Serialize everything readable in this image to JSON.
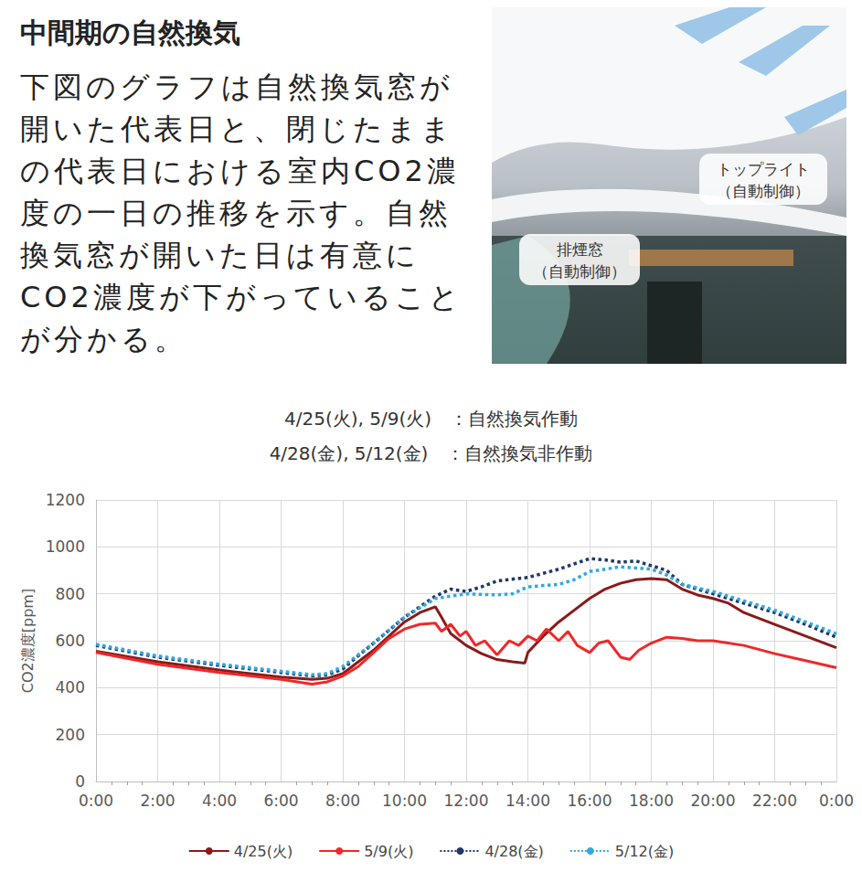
{
  "heading": "中間期の自然換気",
  "body_lines": [
    "下図のグラフは自然換気窓が",
    "開いた代表日と、閉じたまま",
    "の代表日における室内CO2濃",
    "度の一日の推移を示す。自然",
    "換気窓が開いた日は有意に",
    "CO2濃度が下がっていること",
    "が分かる。"
  ],
  "photo": {
    "labels": [
      [
        "トップライト",
        "（自動制御）"
      ],
      [
        "排煙窓",
        "（自動制御）"
      ]
    ]
  },
  "chart_data": {
    "type": "line",
    "annotations": [
      "4/25(火), 5/9(火)　：自然換気作動",
      "4/28(金), 5/12(金)　：自然換気非作動"
    ],
    "y_label": "CO2濃度[ppm]",
    "xlim": [
      0,
      24
    ],
    "xticks": [
      {
        "value": 0,
        "label": "0:00"
      },
      {
        "value": 2,
        "label": "2:00"
      },
      {
        "value": 4,
        "label": "4:00"
      },
      {
        "value": 6,
        "label": "6:00"
      },
      {
        "value": 8,
        "label": "8:00"
      },
      {
        "value": 10,
        "label": "10:00"
      },
      {
        "value": 12,
        "label": "12:00"
      },
      {
        "value": 14,
        "label": "14:00"
      },
      {
        "value": 16,
        "label": "16:00"
      },
      {
        "value": 18,
        "label": "18:00"
      },
      {
        "value": 20,
        "label": "20:00"
      },
      {
        "value": 22,
        "label": "22:00"
      },
      {
        "value": 24,
        "label": "0:00"
      }
    ],
    "ylim": [
      0,
      1200
    ],
    "yticks": [
      0,
      200,
      400,
      600,
      800,
      1000,
      1200
    ],
    "grid": true,
    "legend": "bottom",
    "series": [
      {
        "name": "4/25(火)",
        "color": "#8b1a1a",
        "line_style": "solid",
        "x": [
          0,
          2,
          4,
          6,
          7,
          7.5,
          8,
          9,
          10,
          10.5,
          11,
          11.2,
          11.5,
          12,
          12.5,
          13,
          13.5,
          13.9,
          14,
          14.5,
          15,
          15.5,
          16,
          16.5,
          17,
          17.5,
          18,
          18.5,
          19,
          19.5,
          20,
          20.5,
          21,
          22,
          23,
          24
        ],
        "values": [
          555,
          510,
          475,
          445,
          435,
          440,
          460,
          560,
          680,
          720,
          745,
          700,
          630,
          580,
          545,
          520,
          510,
          505,
          550,
          620,
          680,
          730,
          780,
          820,
          845,
          860,
          865,
          860,
          820,
          795,
          780,
          760,
          720,
          670,
          620,
          570
        ]
      },
      {
        "name": "5/9(火)",
        "color": "#f02828",
        "line_style": "solid",
        "x": [
          0,
          2,
          4,
          6,
          7,
          7.5,
          8,
          8.5,
          9,
          9.5,
          10,
          10.5,
          11,
          11.2,
          11.5,
          11.8,
          12,
          12.3,
          12.6,
          13,
          13.4,
          13.7,
          14,
          14.3,
          14.6,
          15,
          15.3,
          15.6,
          16,
          16.3,
          16.6,
          17,
          17.3,
          17.6,
          18,
          18.5,
          19,
          19.5,
          20,
          21,
          22,
          23,
          24
        ],
        "values": [
          550,
          500,
          465,
          435,
          415,
          425,
          450,
          490,
          550,
          610,
          650,
          670,
          675,
          640,
          670,
          620,
          640,
          580,
          600,
          540,
          600,
          580,
          620,
          600,
          650,
          600,
          640,
          580,
          550,
          590,
          600,
          530,
          520,
          560,
          590,
          615,
          610,
          600,
          600,
          580,
          545,
          515,
          485
        ]
      },
      {
        "name": "4/28(金)",
        "color": "#1f3864",
        "line_style": "dotted",
        "x": [
          0,
          2,
          4,
          6,
          7,
          7.5,
          8,
          9,
          10,
          11,
          11.5,
          12,
          12.5,
          13,
          14,
          15,
          16,
          16.5,
          17,
          17.5,
          18,
          18.5,
          19,
          20,
          21,
          22,
          23,
          24
        ],
        "values": [
          580,
          530,
          495,
          465,
          450,
          455,
          480,
          590,
          700,
          790,
          820,
          810,
          830,
          855,
          870,
          905,
          950,
          945,
          935,
          940,
          920,
          900,
          840,
          800,
          760,
          720,
          670,
          615
        ]
      },
      {
        "name": "5/12(金)",
        "color": "#33a8e0",
        "line_style": "dotted",
        "x": [
          0,
          2,
          4,
          6,
          7,
          7.5,
          8,
          9,
          10,
          11,
          12,
          13,
          13.5,
          14,
          15,
          15.5,
          16,
          17,
          18,
          18.5,
          19,
          20,
          21,
          22,
          23,
          24
        ],
        "values": [
          585,
          535,
          500,
          470,
          455,
          460,
          490,
          590,
          700,
          780,
          800,
          795,
          800,
          830,
          840,
          860,
          895,
          915,
          905,
          880,
          840,
          810,
          770,
          730,
          680,
          630
        ]
      }
    ]
  }
}
